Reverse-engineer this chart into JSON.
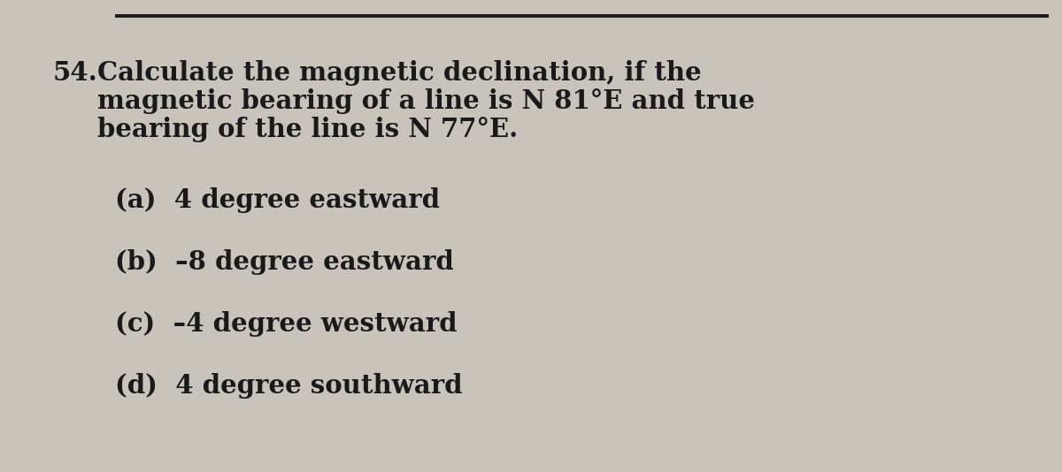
{
  "background_color": "#c8c4bc",
  "line_color": "#1a1a1a",
  "text_color": "#1a1a1a",
  "question_number": "54.",
  "question_line1": "Calculate the magnetic declination, if the",
  "question_line2": "magnetic bearing of a line is N 81°E and true",
  "question_line3": "bearing of the line is N 77°E.",
  "option_a": "(a)  4 degree eastward",
  "option_b": "(b)  –8 degree eastward",
  "option_c": "(c)  –4 degree westward",
  "option_d": "(d)  4 degree southward",
  "font_size_question": 21,
  "font_size_options": 21,
  "font_family": "DejaVu Serif"
}
